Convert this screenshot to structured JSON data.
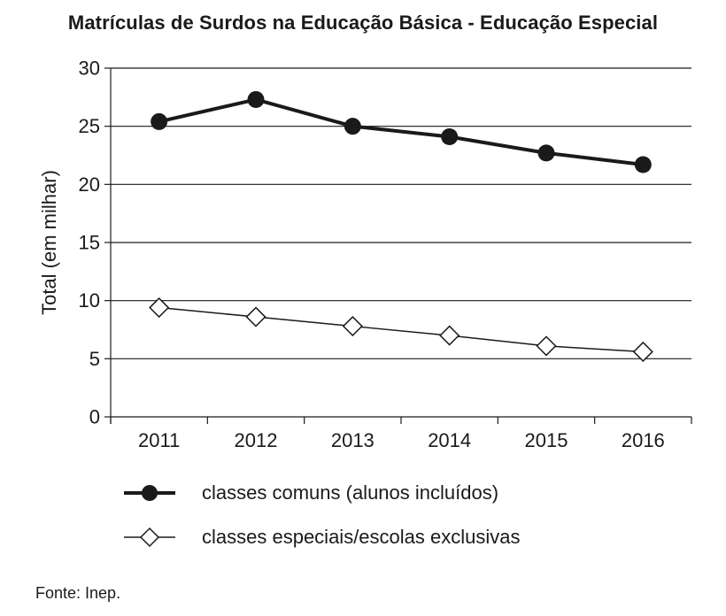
{
  "chart_data": {
    "type": "line",
    "title": "Matrículas de Surdos na Educação Básica - Educação Especial",
    "ylabel": "Total (em milhar)",
    "xlabel": "",
    "categories": [
      "2011",
      "2012",
      "2013",
      "2014",
      "2015",
      "2016"
    ],
    "ylim": [
      0,
      30
    ],
    "yticks": [
      "0",
      "5",
      "10",
      "15",
      "20",
      "25",
      "30"
    ],
    "grid": true,
    "legend_position": "bottom",
    "series": [
      {
        "name": "classes comuns (alunos incluídos)",
        "marker": "filled-circle",
        "color": "#1a1a1a",
        "values": [
          25.4,
          27.3,
          25.0,
          24.1,
          22.7,
          21.7
        ]
      },
      {
        "name": "classes especiais/escolas exclusivas",
        "marker": "open-diamond",
        "color": "#1a1a1a",
        "values": [
          9.4,
          8.6,
          7.8,
          7.0,
          6.1,
          5.6
        ]
      }
    ]
  },
  "source": "Fonte: Inep."
}
